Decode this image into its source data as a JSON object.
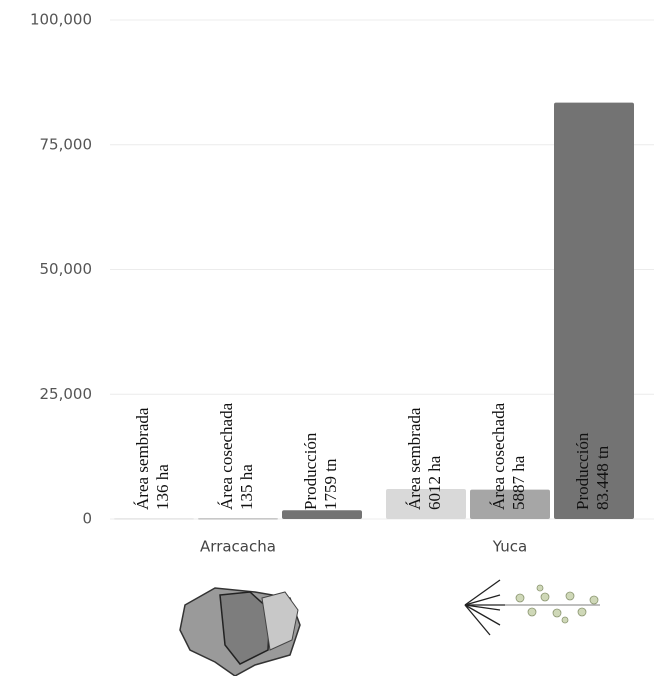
{
  "chart_data": {
    "type": "bar",
    "categories": [
      "Arracacha",
      "Yuca"
    ],
    "series": [
      {
        "name": "Área sembrada",
        "color": "#d9d9d9",
        "values": [
          136,
          6012
        ],
        "value_labels": [
          "136 ha",
          "6012 ha"
        ]
      },
      {
        "name": "Área cosechada",
        "color": "#a6a6a6",
        "values": [
          135,
          5887
        ],
        "value_labels": [
          "135 ha",
          "5887 ha"
        ]
      },
      {
        "name": "Producción",
        "color": "#737373",
        "values": [
          1759,
          83448
        ],
        "value_labels": [
          "1759 tn",
          "83.448 tn"
        ]
      }
    ],
    "ylim": [
      0,
      100000
    ],
    "yticks": [
      0,
      {
        "value": 25000,
        "label": "25,000"
      },
      {
        "value": 50000,
        "label": "50,000"
      },
      {
        "value": 75000,
        "label": "75,000"
      },
      {
        "value": 100000,
        "label": "100,000"
      }
    ],
    "grid": true
  }
}
